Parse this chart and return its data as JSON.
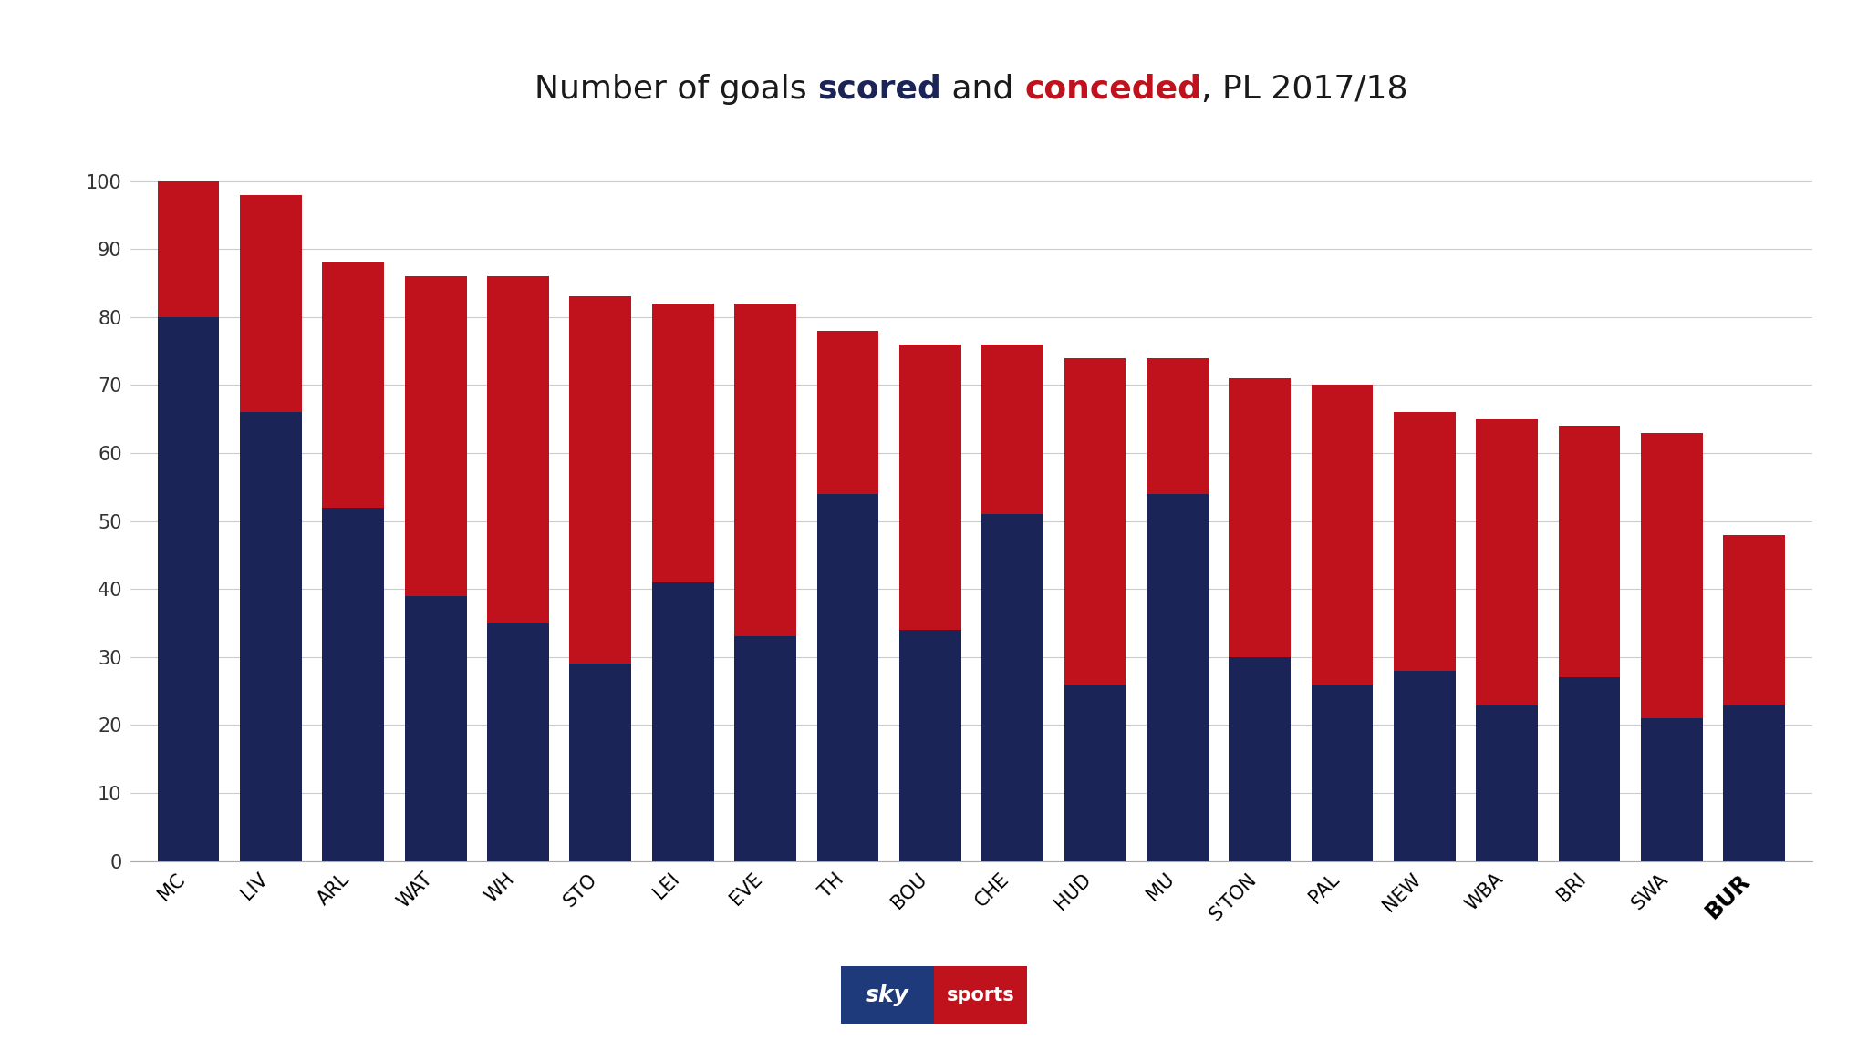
{
  "clubs": [
    "MC",
    "LIV",
    "ARL",
    "WAT",
    "WH",
    "STO",
    "LEI",
    "EVE",
    "TH",
    "BOU",
    "CHE",
    "HUD",
    "MU",
    "S'TON",
    "PAL",
    "NEW",
    "WBA",
    "BRI",
    "SWA",
    "BUR"
  ],
  "scored": [
    80,
    66,
    52,
    39,
    35,
    29,
    41,
    33,
    54,
    34,
    51,
    26,
    54,
    30,
    26,
    28,
    23,
    27,
    21,
    23
  ],
  "conceded": [
    20,
    32,
    36,
    47,
    51,
    54,
    41,
    49,
    24,
    42,
    25,
    48,
    20,
    41,
    44,
    38,
    42,
    37,
    42,
    25
  ],
  "bar_color_scored": "#1a2456",
  "bar_color_conceded": "#c0121c",
  "background_color": "#ffffff",
  "title_parts": [
    {
      "text": "Number of goals ",
      "color": "#1a1a1a",
      "weight": "normal"
    },
    {
      "text": "scored",
      "color": "#1a2456",
      "weight": "bold"
    },
    {
      "text": " and ",
      "color": "#1a1a1a",
      "weight": "normal"
    },
    {
      "text": "conceded",
      "color": "#c0121c",
      "weight": "bold"
    },
    {
      "text": ", PL 2017/18",
      "color": "#1a1a1a",
      "weight": "normal"
    }
  ],
  "ylabel_ticks": [
    0,
    10,
    20,
    30,
    40,
    50,
    60,
    70,
    80,
    90,
    100
  ],
  "ylim": [
    0,
    105
  ],
  "grid_color": "#cccccc",
  "tick_label_fontsize": 15,
  "title_fontsize": 26,
  "last_club_bold": "BUR",
  "bar_width": 0.75,
  "sky_left_color": "#1e3a7a",
  "sky_right_color": "#c0121c",
  "sky_text_color": "#ffffff",
  "sports_text_color": "#ffffff"
}
